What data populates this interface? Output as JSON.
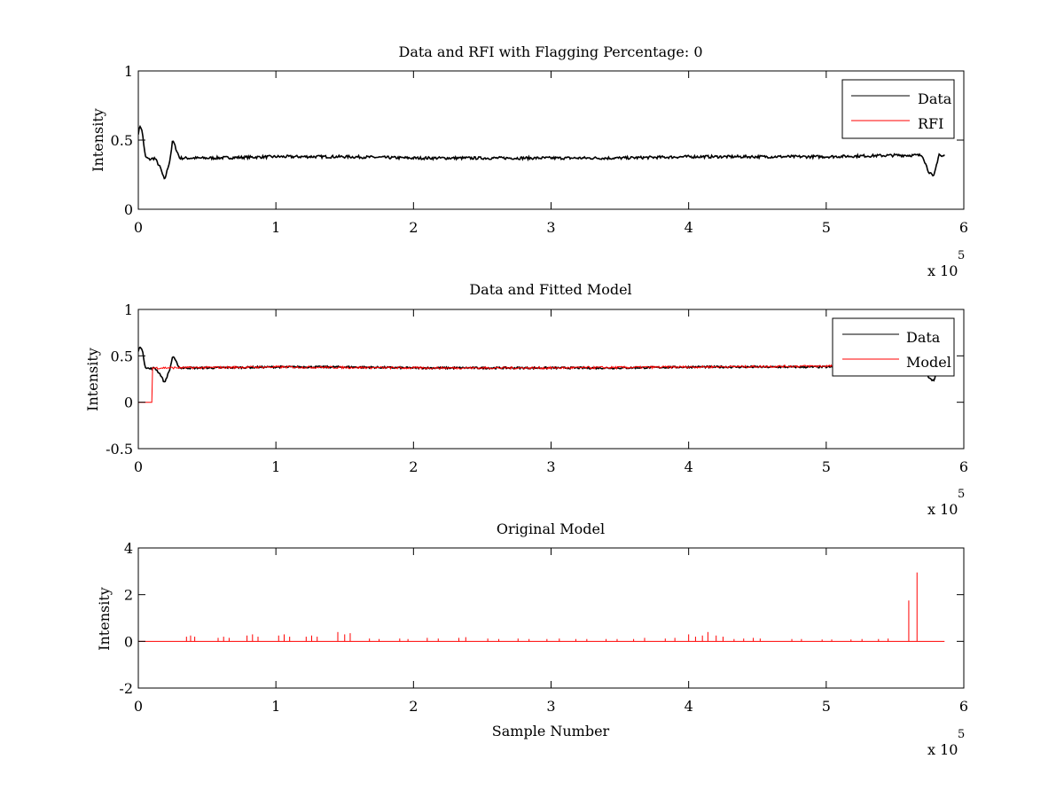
{
  "chart_data": [
    {
      "type": "line",
      "title": "Data and RFI with Flagging Percentage: 0",
      "xlabel": "",
      "ylabel": "Intensity",
      "xlim": [
        0,
        600000
      ],
      "ylim": [
        0,
        1
      ],
      "x_ticks": [
        "0",
        "1",
        "2",
        "3",
        "4",
        "5",
        "6"
      ],
      "y_ticks": [
        "0",
        "0.5",
        "1"
      ],
      "x_multiplier": {
        "base": "x 10",
        "exponent": "5"
      },
      "legend_position": "top-right",
      "series": [
        {
          "name": "Data",
          "color": "#000000",
          "x": [
            0,
            1500,
            3000,
            5000,
            8000,
            12000,
            16000,
            19000,
            21000,
            23000,
            25000,
            30000,
            50000,
            100000,
            150000,
            200000,
            250000,
            300000,
            350000,
            400000,
            450000,
            500000,
            550000,
            570000,
            574000,
            578000,
            582000,
            584000,
            586000
          ],
          "y": [
            0.55,
            0.61,
            0.55,
            0.38,
            0.36,
            0.37,
            0.3,
            0.21,
            0.28,
            0.36,
            0.5,
            0.37,
            0.37,
            0.38,
            0.38,
            0.37,
            0.37,
            0.37,
            0.37,
            0.38,
            0.38,
            0.38,
            0.39,
            0.39,
            0.28,
            0.23,
            0.4,
            0.38,
            0.39
          ]
        },
        {
          "name": "RFI",
          "color": "#ff0000",
          "x": [],
          "y": []
        }
      ]
    },
    {
      "type": "line",
      "title": "Data and Fitted Model",
      "xlabel": "",
      "ylabel": "Intensity",
      "xlim": [
        0,
        600000
      ],
      "ylim": [
        -0.5,
        1
      ],
      "x_ticks": [
        "0",
        "1",
        "2",
        "3",
        "4",
        "5",
        "6"
      ],
      "y_ticks": [
        "-0.5",
        "0",
        "0.5",
        "1"
      ],
      "x_multiplier": {
        "base": "x 10",
        "exponent": "5"
      },
      "legend_position": "top-right",
      "series": [
        {
          "name": "Data",
          "color": "#000000",
          "x": [
            0,
            1500,
            3000,
            5000,
            8000,
            12000,
            16000,
            19000,
            21000,
            23000,
            25000,
            30000,
            50000,
            100000,
            150000,
            200000,
            250000,
            300000,
            350000,
            400000,
            450000,
            500000,
            550000,
            570000,
            574000,
            578000,
            582000,
            584000,
            586000
          ],
          "y": [
            0.55,
            0.61,
            0.55,
            0.38,
            0.36,
            0.37,
            0.3,
            0.21,
            0.28,
            0.36,
            0.5,
            0.37,
            0.37,
            0.38,
            0.38,
            0.37,
            0.37,
            0.37,
            0.37,
            0.38,
            0.38,
            0.38,
            0.39,
            0.39,
            0.28,
            0.23,
            0.4,
            0.38,
            0.39
          ]
        },
        {
          "name": "Model",
          "color": "#ff0000",
          "x": [
            0,
            10000,
            10000,
            100000,
            200000,
            300000,
            400000,
            500000,
            550000
          ],
          "y": [
            0,
            0,
            0.37,
            0.38,
            0.37,
            0.37,
            0.38,
            0.39,
            0.39
          ]
        }
      ]
    },
    {
      "type": "line",
      "title": "Original Model",
      "xlabel": "Sample Number",
      "ylabel": "Intensity",
      "xlim": [
        0,
        600000
      ],
      "ylim": [
        -2,
        4
      ],
      "x_ticks": [
        "0",
        "1",
        "2",
        "3",
        "4",
        "5",
        "6"
      ],
      "y_ticks": [
        "-2",
        "0",
        "2",
        "4"
      ],
      "x_multiplier": {
        "base": "x 10",
        "exponent": "5"
      },
      "series": [
        {
          "color": "#ff0000",
          "baseline": 0,
          "x_end": 586000,
          "spikes": [
            {
              "x": 35000,
              "y": 0.2
            },
            {
              "x": 38000,
              "y": 0.25
            },
            {
              "x": 41000,
              "y": 0.2
            },
            {
              "x": 58000,
              "y": 0.15
            },
            {
              "x": 62000,
              "y": 0.2
            },
            {
              "x": 66000,
              "y": 0.15
            },
            {
              "x": 79000,
              "y": 0.25
            },
            {
              "x": 83000,
              "y": 0.3
            },
            {
              "x": 87000,
              "y": 0.2
            },
            {
              "x": 102000,
              "y": 0.25
            },
            {
              "x": 106000,
              "y": 0.3
            },
            {
              "x": 110000,
              "y": 0.2
            },
            {
              "x": 122000,
              "y": 0.2
            },
            {
              "x": 126000,
              "y": 0.25
            },
            {
              "x": 130000,
              "y": 0.2
            },
            {
              "x": 145000,
              "y": 0.4
            },
            {
              "x": 150000,
              "y": 0.3
            },
            {
              "x": 154000,
              "y": 0.35
            },
            {
              "x": 168000,
              "y": 0.12
            },
            {
              "x": 175000,
              "y": 0.1
            },
            {
              "x": 190000,
              "y": 0.12
            },
            {
              "x": 196000,
              "y": 0.1
            },
            {
              "x": 210000,
              "y": 0.15
            },
            {
              "x": 218000,
              "y": 0.12
            },
            {
              "x": 233000,
              "y": 0.15
            },
            {
              "x": 238000,
              "y": 0.18
            },
            {
              "x": 254000,
              "y": 0.12
            },
            {
              "x": 262000,
              "y": 0.1
            },
            {
              "x": 276000,
              "y": 0.12
            },
            {
              "x": 284000,
              "y": 0.1
            },
            {
              "x": 297000,
              "y": 0.1
            },
            {
              "x": 306000,
              "y": 0.12
            },
            {
              "x": 318000,
              "y": 0.1
            },
            {
              "x": 326000,
              "y": 0.1
            },
            {
              "x": 340000,
              "y": 0.1
            },
            {
              "x": 348000,
              "y": 0.1
            },
            {
              "x": 360000,
              "y": 0.1
            },
            {
              "x": 368000,
              "y": 0.15
            },
            {
              "x": 383000,
              "y": 0.12
            },
            {
              "x": 390000,
              "y": 0.15
            },
            {
              "x": 400000,
              "y": 0.3
            },
            {
              "x": 405000,
              "y": 0.2
            },
            {
              "x": 410000,
              "y": 0.25
            },
            {
              "x": 414000,
              "y": 0.4
            },
            {
              "x": 420000,
              "y": 0.25
            },
            {
              "x": 425000,
              "y": 0.2
            },
            {
              "x": 433000,
              "y": 0.1
            },
            {
              "x": 440000,
              "y": 0.12
            },
            {
              "x": 447000,
              "y": 0.15
            },
            {
              "x": 452000,
              "y": 0.12
            },
            {
              "x": 475000,
              "y": 0.1
            },
            {
              "x": 482000,
              "y": 0.1
            },
            {
              "x": 497000,
              "y": 0.08
            },
            {
              "x": 504000,
              "y": 0.08
            },
            {
              "x": 518000,
              "y": 0.08
            },
            {
              "x": 526000,
              "y": 0.1
            },
            {
              "x": 538000,
              "y": 0.1
            },
            {
              "x": 545000,
              "y": 0.12
            },
            {
              "x": 560000,
              "y": 1.75
            },
            {
              "x": 566000,
              "y": 2.95
            }
          ]
        }
      ]
    }
  ]
}
